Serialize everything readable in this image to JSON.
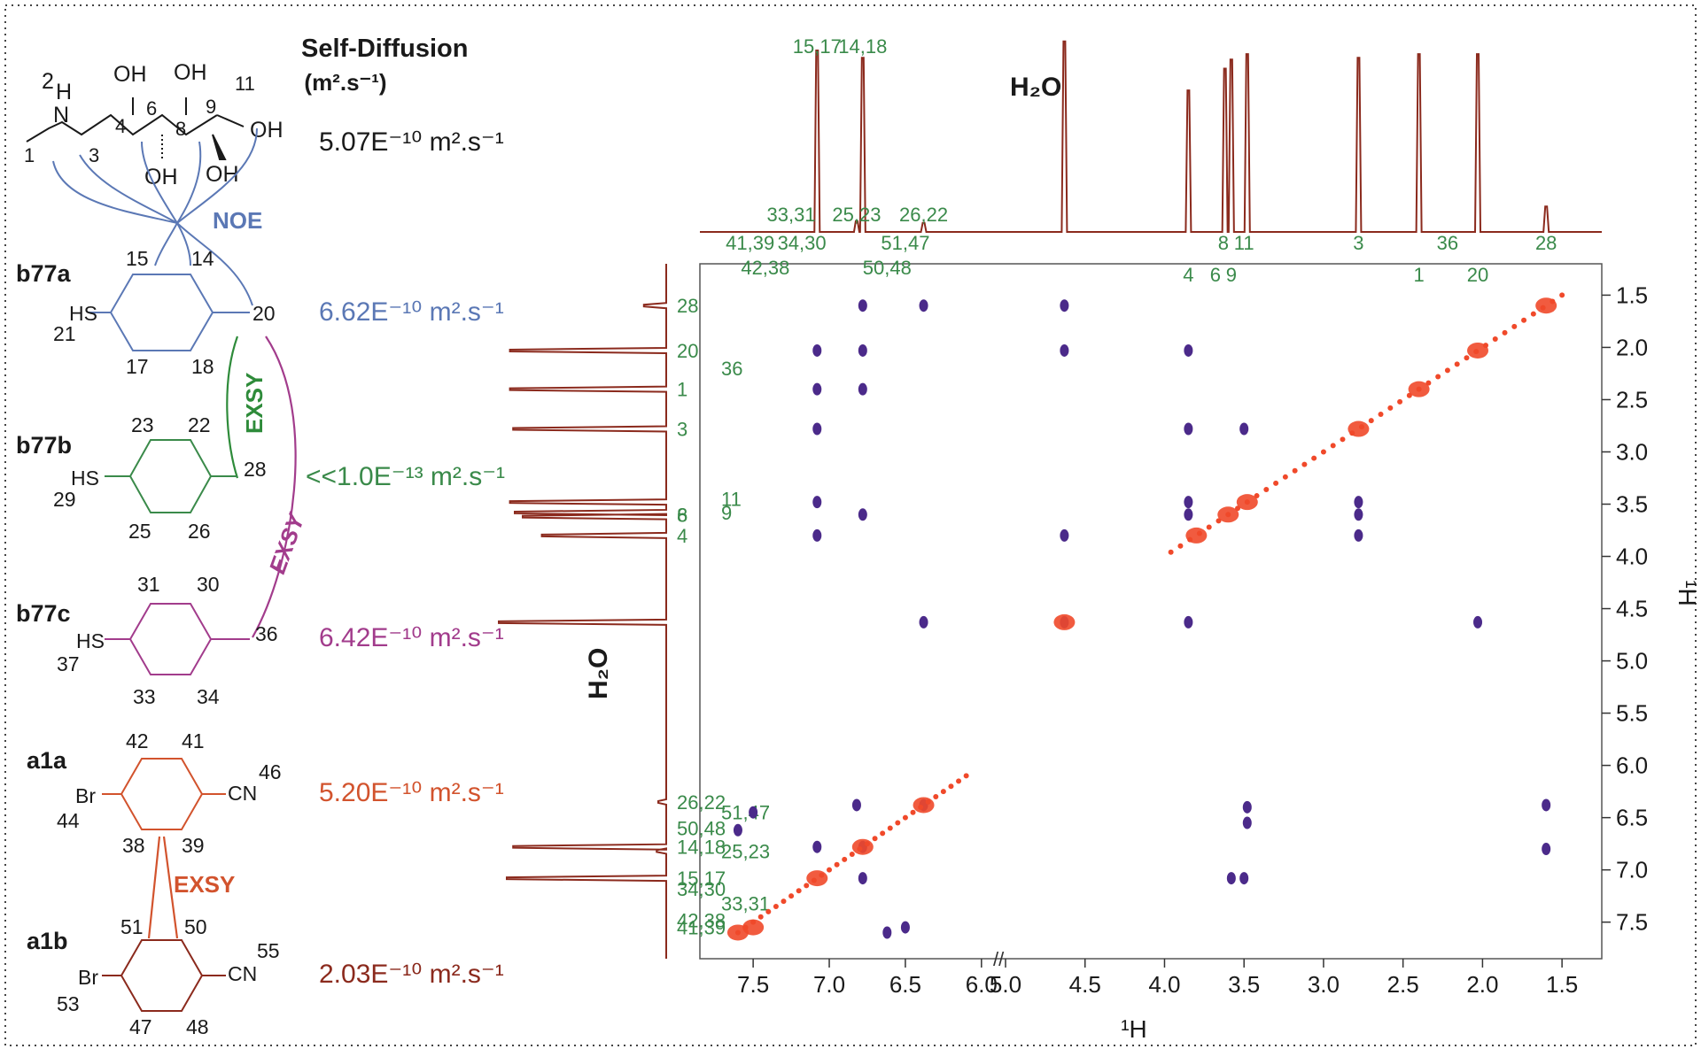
{
  "header": {
    "self_diffusion_title": "Self-Diffusion",
    "self_diffusion_unit": "(m².s⁻¹)"
  },
  "colors": {
    "noe": "#5b78b5",
    "exsy_b77": "#2e8b3a",
    "exsy_b77c": "#a23c8c",
    "exsy_a1": "#d2532d",
    "spectrum": "#8b2a1d",
    "peak_label": "#3a8a4a",
    "positive_peaks": "#f0492a",
    "negative_peaks": "#4b2a8a"
  },
  "molecules": {
    "amine": {
      "labels": [
        "2",
        "H",
        "N",
        "1",
        "3",
        "4",
        "OH",
        "6",
        "OH",
        "8",
        "OH",
        "OH",
        "9",
        "11",
        "OH",
        "OH"
      ],
      "diffusion": "5.07E⁻¹⁰ m².s⁻¹"
    },
    "b77a": {
      "name": "b77a",
      "labels": [
        "15",
        "14",
        "21",
        "HS",
        "17",
        "18",
        "20"
      ],
      "diffusion": "6.62E⁻¹⁰ m².s⁻¹"
    },
    "b77b": {
      "name": "b77b",
      "labels": [
        "23",
        "22",
        "29",
        "HS",
        "25",
        "26",
        "28"
      ],
      "diffusion": "<<1.0E⁻¹³ m².s⁻¹"
    },
    "b77c": {
      "name": "b77c",
      "labels": [
        "31",
        "30",
        "37",
        "HS",
        "33",
        "34",
        "36"
      ],
      "diffusion": "6.42E⁻¹⁰ m².s⁻¹"
    },
    "a1a": {
      "name": "a1a",
      "labels": [
        "42",
        "41",
        "44",
        "Br",
        "38",
        "39",
        "CN",
        "46"
      ],
      "diffusion": "5.20E⁻¹⁰ m².s⁻¹"
    },
    "a1b": {
      "name": "a1b",
      "labels": [
        "51",
        "50",
        "53",
        "Br",
        "47",
        "48",
        "CN",
        "55"
      ],
      "diffusion": "2.03E⁻¹⁰ m².s⁻¹"
    }
  },
  "annotations": {
    "noe": "NOE",
    "exsy_green": "EXSY",
    "exsy_purple": "EXSY",
    "exsy_orange": "EXSY"
  },
  "chart_data": {
    "type": "scatter",
    "xlabel": "¹H",
    "ylabel": "¹H",
    "x_ticks": [
      "7.5",
      "7.0",
      "6.5",
      "6.0",
      "5.0",
      "4.5",
      "4.0",
      "3.5",
      "3.0",
      "2.5",
      "2.0",
      "1.5"
    ],
    "y_ticks": [
      "1.5",
      "2.0",
      "2.5",
      "3.0",
      "3.5",
      "4.0",
      "4.5",
      "5.0",
      "5.5",
      "6.0",
      "6.5",
      "7.0",
      "7.5"
    ],
    "x_range": [
      7.85,
      1.25
    ],
    "x_break": [
      5.9,
      5.0
    ],
    "y_range": [
      1.2,
      7.85
    ],
    "water_label": "H₂O",
    "top_projection_labels": [
      {
        "t": "15,17",
        "ppm": 7.08
      },
      {
        "t": "14,18",
        "ppm": 6.78
      },
      {
        "t": "33,31",
        "ppm": 7.25
      },
      {
        "t": "25,23",
        "ppm": 6.82
      },
      {
        "t": "26,22",
        "ppm": 6.38
      },
      {
        "t": "41,39",
        "ppm": 7.52
      },
      {
        "t": "34,30",
        "ppm": 7.18
      },
      {
        "t": "51,47",
        "ppm": 6.5
      },
      {
        "t": "42,38",
        "ppm": 7.42
      },
      {
        "t": "50,48",
        "ppm": 6.62
      },
      {
        "t": "4",
        "ppm": 3.85
      },
      {
        "t": "11",
        "ppm": 3.5
      },
      {
        "t": "6",
        "ppm": 3.68
      },
      {
        "t": "8",
        "ppm": 3.63
      },
      {
        "t": "9",
        "ppm": 3.58
      },
      {
        "t": "3",
        "ppm": 2.78
      },
      {
        "t": "1",
        "ppm": 2.4
      },
      {
        "t": "36",
        "ppm": 2.22
      },
      {
        "t": "20",
        "ppm": 2.03
      },
      {
        "t": "28",
        "ppm": 1.6
      }
    ],
    "top_projection_peaks": [
      {
        "ppm": 7.08,
        "h": 1.0
      },
      {
        "ppm": 6.78,
        "h": 0.96
      },
      {
        "ppm": 6.82,
        "h": 0.06
      },
      {
        "ppm": 6.38,
        "h": 0.05
      },
      {
        "ppm": 4.63,
        "h": 1.2
      },
      {
        "ppm": 3.85,
        "h": 0.78
      },
      {
        "ppm": 3.62,
        "h": 0.9
      },
      {
        "ppm": 3.58,
        "h": 0.95
      },
      {
        "ppm": 3.48,
        "h": 0.98
      },
      {
        "ppm": 2.78,
        "h": 0.96
      },
      {
        "ppm": 2.4,
        "h": 0.98
      },
      {
        "ppm": 2.03,
        "h": 0.98
      },
      {
        "ppm": 1.6,
        "h": 0.14
      }
    ],
    "left_projection_labels": [
      {
        "t": "28",
        "ppm": 1.6
      },
      {
        "t": "20",
        "ppm": 2.03
      },
      {
        "t": "36",
        "ppm": 2.2
      },
      {
        "t": "1",
        "ppm": 2.4
      },
      {
        "t": "3",
        "ppm": 2.78
      },
      {
        "t": "11",
        "ppm": 3.45
      },
      {
        "t": "6",
        "ppm": 3.6
      },
      {
        "t": "8",
        "ppm": 3.6
      },
      {
        "t": "9",
        "ppm": 3.58
      },
      {
        "t": "4",
        "ppm": 3.8
      },
      {
        "t": "26,22",
        "ppm": 6.35
      },
      {
        "t": "51,47",
        "ppm": 6.45
      },
      {
        "t": "50,48",
        "ppm": 6.6
      },
      {
        "t": "14,18",
        "ppm": 6.78
      },
      {
        "t": "25,23",
        "ppm": 6.82
      },
      {
        "t": "15,17",
        "ppm": 7.08
      },
      {
        "t": "34,30",
        "ppm": 7.18
      },
      {
        "t": "33,31",
        "ppm": 7.32
      },
      {
        "t": "41,39",
        "ppm": 7.55
      },
      {
        "t": "42,38",
        "ppm": 7.48
      }
    ],
    "left_projection_peaks": [
      {
        "ppm": 1.6,
        "h": 0.14
      },
      {
        "ppm": 2.03,
        "h": 0.98
      },
      {
        "ppm": 2.4,
        "h": 0.98
      },
      {
        "ppm": 2.78,
        "h": 0.96
      },
      {
        "ppm": 3.48,
        "h": 0.98
      },
      {
        "ppm": 3.58,
        "h": 0.95
      },
      {
        "ppm": 3.62,
        "h": 0.9
      },
      {
        "ppm": 3.8,
        "h": 0.78
      },
      {
        "ppm": 4.63,
        "h": 1.2
      },
      {
        "ppm": 6.35,
        "h": 0.05
      },
      {
        "ppm": 6.78,
        "h": 0.96
      },
      {
        "ppm": 6.82,
        "h": 0.06
      },
      {
        "ppm": 7.08,
        "h": 1.0
      }
    ],
    "diagonal_peaks": [
      [
        1.6,
        1.6
      ],
      [
        2.03,
        2.03
      ],
      [
        2.4,
        2.4
      ],
      [
        2.78,
        2.78
      ],
      [
        3.48,
        3.48
      ],
      [
        3.6,
        3.6
      ],
      [
        3.8,
        3.8
      ],
      [
        4.63,
        4.63
      ],
      [
        6.38,
        6.38
      ],
      [
        6.78,
        6.78
      ],
      [
        7.08,
        7.08
      ],
      [
        7.5,
        7.55
      ],
      [
        7.6,
        7.6
      ]
    ],
    "cross_peaks": [
      [
        7.08,
        2.03
      ],
      [
        6.78,
        2.03
      ],
      [
        7.08,
        2.4
      ],
      [
        6.78,
        2.4
      ],
      [
        7.08,
        3.48
      ],
      [
        6.78,
        3.6
      ],
      [
        7.08,
        3.8
      ],
      [
        6.78,
        1.6
      ],
      [
        6.38,
        1.6
      ],
      [
        7.08,
        2.78
      ],
      [
        3.85,
        2.78
      ],
      [
        3.5,
        2.78
      ],
      [
        2.78,
        3.48
      ],
      [
        2.78,
        3.6
      ],
      [
        2.78,
        3.8
      ],
      [
        3.85,
        2.03
      ],
      [
        3.85,
        3.48
      ],
      [
        3.85,
        3.6
      ],
      [
        4.63,
        3.8
      ],
      [
        4.63,
        2.03
      ],
      [
        4.63,
        1.6
      ],
      [
        4.63,
        4.63
      ],
      [
        2.03,
        4.63
      ],
      [
        3.85,
        4.63
      ],
      [
        6.38,
        4.63
      ],
      [
        1.6,
        6.38
      ],
      [
        1.6,
        6.8
      ],
      [
        3.48,
        6.4
      ],
      [
        3.48,
        6.55
      ],
      [
        3.5,
        7.08
      ],
      [
        3.58,
        7.08
      ],
      [
        6.62,
        7.6
      ],
      [
        6.5,
        7.55
      ],
      [
        6.38,
        6.38
      ],
      [
        7.08,
        6.78
      ],
      [
        6.78,
        7.08
      ],
      [
        6.78,
        6.78
      ],
      [
        6.82,
        6.38
      ],
      [
        7.5,
        6.45
      ],
      [
        7.6,
        6.62
      ]
    ]
  }
}
